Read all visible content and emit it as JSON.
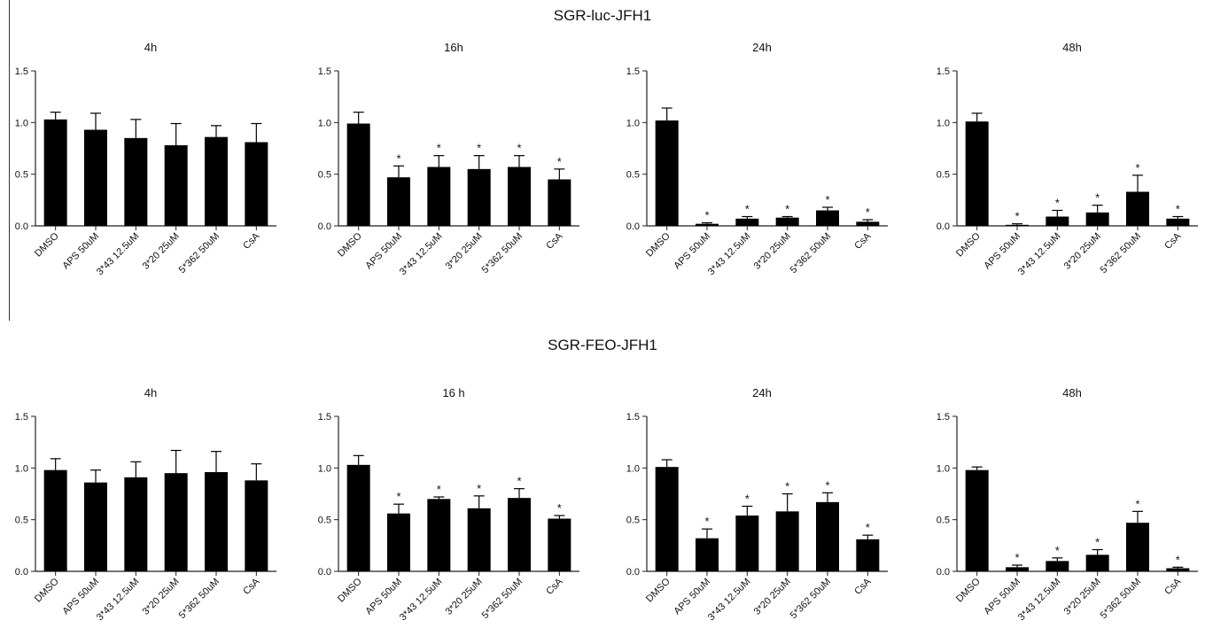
{
  "rows": [
    {
      "title": "SGR-luc-JFH1"
    },
    {
      "title": "SGR-FEO-JFH1"
    }
  ],
  "chart_data": [
    {
      "type": "bar",
      "title": "4h",
      "categories": [
        "DMSO",
        "APS 50uM",
        "3*43 12.5uM",
        "3*20 25uM",
        "5*362 50uM",
        "CsA"
      ],
      "values": [
        1.03,
        0.93,
        0.85,
        0.78,
        0.86,
        0.81
      ],
      "errors": [
        0.07,
        0.16,
        0.18,
        0.21,
        0.11,
        0.18
      ],
      "significance": [
        "",
        "",
        "",
        "",
        "",
        ""
      ],
      "yticks": [
        "0.0",
        "0.5",
        "1.0",
        "1.5"
      ],
      "ylim": [
        0,
        1.5
      ],
      "xlabel": "",
      "ylabel": ""
    },
    {
      "type": "bar",
      "title": "16h",
      "categories": [
        "DMSO",
        "APS 50uM",
        "3*43 12.5uM",
        "3*20 25uM",
        "5*362 50uM",
        "CsA"
      ],
      "values": [
        0.99,
        0.47,
        0.57,
        0.55,
        0.57,
        0.45
      ],
      "errors": [
        0.11,
        0.11,
        0.11,
        0.13,
        0.11,
        0.1
      ],
      "significance": [
        "",
        "*",
        "*",
        "*",
        "*",
        "*"
      ],
      "yticks": [
        "0.0",
        "0.5",
        "1.0",
        "1.5"
      ],
      "ylim": [
        0,
        1.5
      ],
      "xlabel": "",
      "ylabel": ""
    },
    {
      "type": "bar",
      "title": "24h",
      "categories": [
        "DMSO",
        "APS 50uM",
        "3*43 12.5uM",
        "3*20 25uM",
        "5*362 50uM",
        "CsA"
      ],
      "values": [
        1.02,
        0.02,
        0.07,
        0.08,
        0.15,
        0.04
      ],
      "errors": [
        0.12,
        0.01,
        0.02,
        0.01,
        0.03,
        0.02
      ],
      "significance": [
        "",
        "*",
        "*",
        "*",
        "*",
        "*"
      ],
      "yticks": [
        "0.0",
        "0.5",
        "1.0",
        "1.5"
      ],
      "ylim": [
        0,
        1.5
      ],
      "xlabel": "",
      "ylabel": ""
    },
    {
      "type": "bar",
      "title": "48h",
      "categories": [
        "DMSO",
        "APS 50uM",
        "3*43 12.5uM",
        "3*20 25uM",
        "5*362 50uM",
        "CsA"
      ],
      "values": [
        1.01,
        0.01,
        0.09,
        0.13,
        0.33,
        0.07
      ],
      "errors": [
        0.08,
        0.01,
        0.06,
        0.07,
        0.16,
        0.02
      ],
      "significance": [
        "",
        "*",
        "*",
        "*",
        "*",
        "*"
      ],
      "yticks": [
        "0.0",
        "0.5",
        "1.0",
        "1.5"
      ],
      "ylim": [
        0,
        1.5
      ],
      "xlabel": "",
      "ylabel": ""
    },
    {
      "type": "bar",
      "title": "4h",
      "categories": [
        "DMSO",
        "APS 50uM",
        "3*43 12.5uM",
        "3*20 25uM",
        "5*362 50uM",
        "CsA"
      ],
      "values": [
        0.98,
        0.86,
        0.91,
        0.95,
        0.96,
        0.88
      ],
      "errors": [
        0.11,
        0.12,
        0.15,
        0.22,
        0.2,
        0.16
      ],
      "significance": [
        "",
        "",
        "",
        "",
        "",
        ""
      ],
      "yticks": [
        "0.0",
        "0.5",
        "1.0",
        "1.5"
      ],
      "ylim": [
        0,
        1.5
      ],
      "xlabel": "",
      "ylabel": ""
    },
    {
      "type": "bar",
      "title": "16 h",
      "categories": [
        "DMSO",
        "APS 50uM",
        "3*43 12.5uM",
        "3*20 25uM",
        "5*362 50uM",
        "CsA"
      ],
      "values": [
        1.03,
        0.56,
        0.7,
        0.61,
        0.71,
        0.51
      ],
      "errors": [
        0.09,
        0.09,
        0.02,
        0.12,
        0.09,
        0.03
      ],
      "significance": [
        "",
        "*",
        "*",
        "*",
        "*",
        "*"
      ],
      "yticks": [
        "0.0",
        "0.5",
        "1.0",
        "1.5"
      ],
      "ylim": [
        0,
        1.5
      ],
      "xlabel": "",
      "ylabel": ""
    },
    {
      "type": "bar",
      "title": "24h",
      "categories": [
        "DMSO",
        "APS 50uM",
        "3*43 12.5uM",
        "3*20 25uM",
        "5*362 50uM",
        "CsA"
      ],
      "values": [
        1.01,
        0.32,
        0.54,
        0.58,
        0.67,
        0.31
      ],
      "errors": [
        0.07,
        0.09,
        0.09,
        0.17,
        0.09,
        0.04
      ],
      "significance": [
        "",
        "*",
        "*",
        "*",
        "*",
        "*"
      ],
      "yticks": [
        "0.0",
        "0.5",
        "1.0",
        "1.5"
      ],
      "ylim": [
        0,
        1.5
      ],
      "xlabel": "",
      "ylabel": ""
    },
    {
      "type": "bar",
      "title": "48h",
      "categories": [
        "DMSO",
        "APS 50uM",
        "3*43 12.5uM",
        "3*20 25uM",
        "5*362 50uM",
        "CsA"
      ],
      "values": [
        0.98,
        0.04,
        0.1,
        0.16,
        0.47,
        0.03
      ],
      "errors": [
        0.03,
        0.02,
        0.03,
        0.05,
        0.11,
        0.01
      ],
      "significance": [
        "",
        "*",
        "*",
        "*",
        "*",
        "*"
      ],
      "yticks": [
        "0.0",
        "0.5",
        "1.0",
        "1.5"
      ],
      "ylim": [
        0,
        1.5
      ],
      "xlabel": "",
      "ylabel": ""
    }
  ],
  "colors": {
    "bar": "#000000",
    "axis": "#222222",
    "text": "#111111"
  }
}
